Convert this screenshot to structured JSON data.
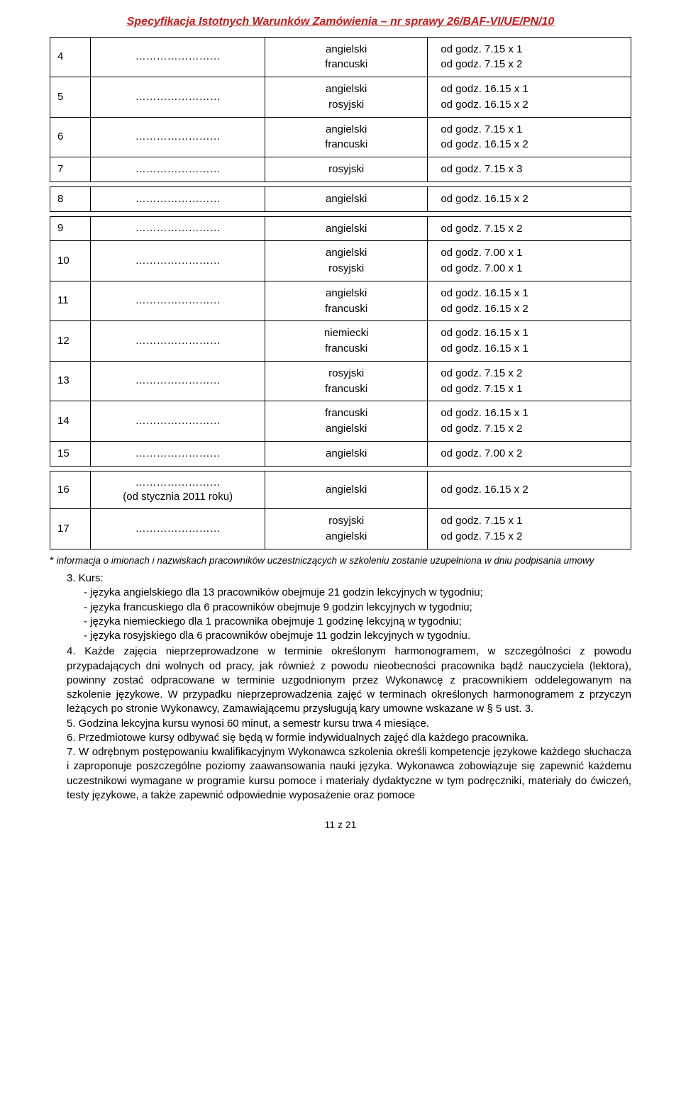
{
  "header": "Specyfikacja Istotnych Warunków Zamówienia – nr sprawy 26/BAF-VI/UE/PN/10",
  "tables": [
    {
      "rows": [
        {
          "num": "4",
          "dots": "……………………",
          "langs": [
            "angielski",
            "francuski"
          ],
          "times": [
            "od godz. 7.15 x 1",
            "od godz. 7.15 x 2"
          ]
        },
        {
          "num": "5",
          "dots": "……………………",
          "langs": [
            "angielski",
            "rosyjski"
          ],
          "times": [
            "od godz. 16.15 x 1",
            "od godz. 16.15 x 2"
          ]
        },
        {
          "num": "6",
          "dots": "……………………",
          "langs": [
            "angielski",
            "francuski"
          ],
          "times": [
            "od godz. 7.15 x 1",
            "od godz. 16.15 x 2"
          ]
        },
        {
          "num": "7",
          "dots": "……………………",
          "langs": [
            "rosyjski"
          ],
          "times": [
            "od godz. 7.15 x 3"
          ]
        }
      ]
    },
    {
      "rows": [
        {
          "num": "8",
          "dots": "……………………",
          "langs": [
            "angielski"
          ],
          "times": [
            "od godz. 16.15 x 2"
          ]
        }
      ]
    },
    {
      "rows": [
        {
          "num": "9",
          "dots": "……………………",
          "langs": [
            "angielski"
          ],
          "times": [
            "od godz. 7.15 x 2"
          ]
        },
        {
          "num": "10",
          "dots": "……………………",
          "langs": [
            "angielski",
            "rosyjski"
          ],
          "times": [
            "od godz. 7.00 x 1",
            "od godz. 7.00 x 1"
          ]
        },
        {
          "num": "11",
          "dots": "……………………",
          "langs": [
            "angielski",
            "francuski"
          ],
          "times": [
            "od godz. 16.15 x 1",
            "od godz. 16.15 x 2"
          ]
        },
        {
          "num": "12",
          "dots": "……………………",
          "langs": [
            "niemiecki",
            "francuski"
          ],
          "times": [
            "od godz. 16.15 x 1",
            "od godz. 16.15 x 1"
          ]
        },
        {
          "num": "13",
          "dots": "……………………",
          "langs": [
            "rosyjski",
            "francuski"
          ],
          "times": [
            "od godz. 7.15 x 2",
            "od godz. 7.15 x 1"
          ]
        },
        {
          "num": "14",
          "dots": "……………………",
          "langs": [
            "francuski",
            "angielski"
          ],
          "times": [
            "od godz. 16.15 x 1",
            "od godz. 7.15 x 2"
          ]
        },
        {
          "num": "15",
          "dots": "……………………",
          "langs": [
            "angielski"
          ],
          "times": [
            "od godz. 7.00 x 2"
          ]
        }
      ]
    },
    {
      "rows": [
        {
          "num": "16",
          "dots": "……………………\n(od stycznia 2011 roku)",
          "langs": [
            "angielski"
          ],
          "times": [
            "od godz. 16.15 x 2"
          ]
        },
        {
          "num": "17",
          "dots": "……………………",
          "langs": [
            "rosyjski",
            "angielski"
          ],
          "times": [
            "od godz. 7.15 x 1",
            "od godz. 7.15 x 2"
          ]
        }
      ]
    }
  ],
  "footnote_star": "*",
  "footnote": "informacja o imionach i nazwiskach pracowników uczestniczących w szkoleniu zostanie uzupełniona w dniu podpisania   umowy",
  "para3_label": "3. Kurs:",
  "para3_items": [
    "- języka angielskiego dla 13 pracowników obejmuje 21 godzin lekcyjnych w  tygodniu;",
    "- języka francuskiego dla 6 pracowników obejmuje 9 godzin lekcyjnych w tygodniu;",
    "- języka niemieckiego dla 1 pracownika obejmuje 1 godzinę lekcyjną w tygodniu;",
    "- języka rosyjskiego dla 6 pracowników obejmuje 11 godzin lekcyjnych w tygodniu."
  ],
  "para4": "4. Każde zajęcia nieprzeprowadzone w terminie określonym harmonogramem, w szczególności z powodu przypadających dni wolnych od pracy, jak również z powodu nieobecności pracownika bądź nauczyciela (lektora), powinny zostać odpracowane w terminie uzgodnionym przez Wykonawcę z pracownikiem oddelegowanym na szkolenie językowe. W przypadku nieprzeprowadzenia zajęć w terminach określonych harmonogramem z przyczyn leżących po stronie Wykonawcy, Zamawiającemu przysługują kary umowne wskazane w § 5 ust. 3.",
  "para5": "5. Godzina lekcyjna kursu wynosi 60 minut, a semestr kursu trwa 4 miesiące.",
  "para6": "6. Przedmiotowe kursy odbywać się będą w formie indywidualnych zajęć dla każdego pracownika.",
  "para7": "7. W odrębnym postępowaniu kwalifikacyjnym Wykonawca szkolenia określi kompetencje językowe każdego słuchacza i zaproponuje poszczególne poziomy zaawansowania nauki języka. Wykonawca zobowiązuje się zapewnić każdemu uczestnikowi wymagane w programie kursu pomoce i materiały dydaktyczne w tym podręczniki, materiały do ćwiczeń, testy językowe, a także zapewnić odpowiednie wyposażenie oraz pomoce",
  "page_num": "11 z 21",
  "colors": {
    "header_red": "#c02020",
    "text": "#000000",
    "border": "#000000",
    "bg": "#ffffff"
  }
}
